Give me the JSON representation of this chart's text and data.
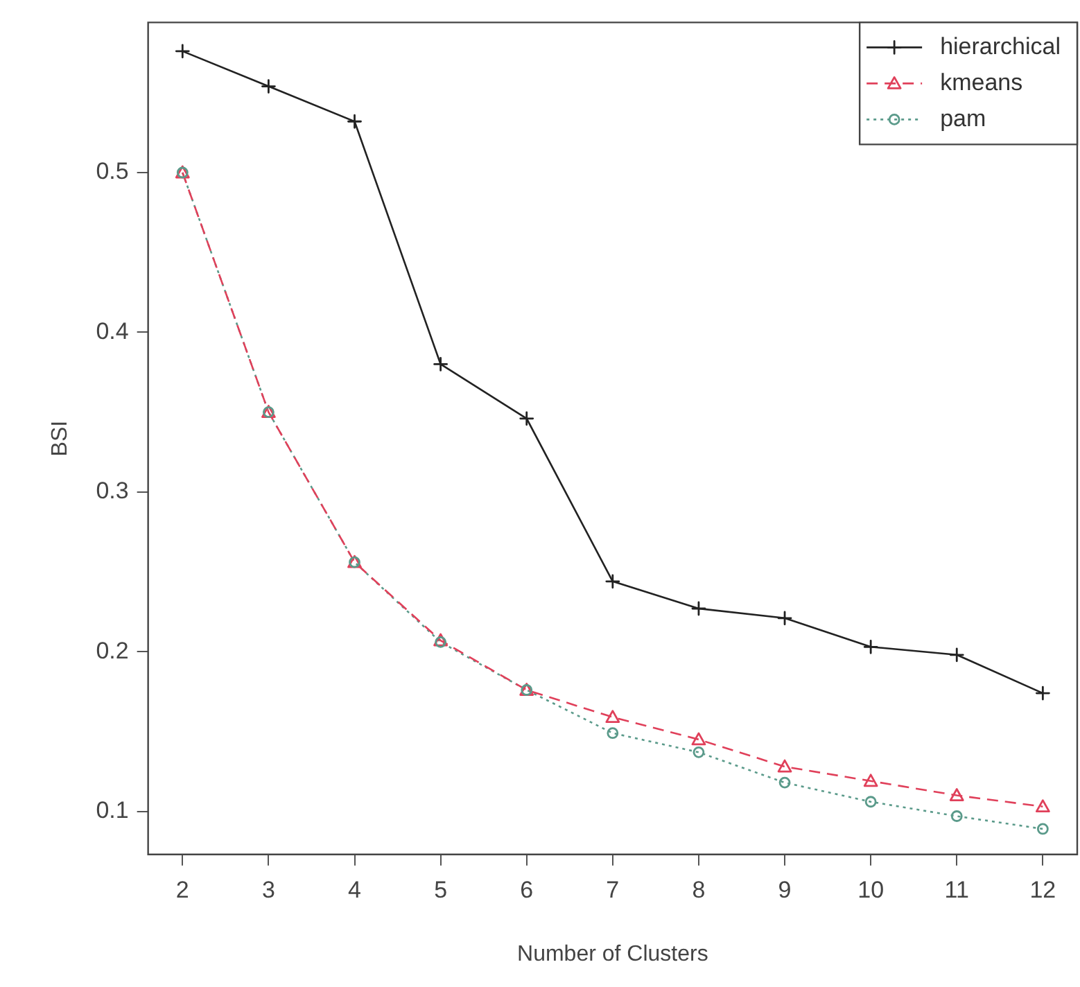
{
  "chart_data": {
    "type": "line",
    "xlabel": "Number of Clusters",
    "ylabel": "BSI",
    "x": [
      2,
      3,
      4,
      5,
      6,
      7,
      8,
      9,
      10,
      11,
      12
    ],
    "series": [
      {
        "name": "hierarchical",
        "color": "#222222",
        "line_style": "solid",
        "marker": "cross",
        "values": [
          0.576,
          0.554,
          0.532,
          0.38,
          0.346,
          0.244,
          0.227,
          0.221,
          0.203,
          0.198,
          0.174
        ]
      },
      {
        "name": "kmeans",
        "color": "#e0405a",
        "line_style": "dashed",
        "marker": "triangle",
        "values": [
          0.5,
          0.35,
          0.256,
          0.207,
          0.176,
          0.159,
          0.145,
          0.128,
          0.119,
          0.11,
          0.103
        ]
      },
      {
        "name": "pam",
        "color": "#5a9a8a",
        "line_style": "dotted",
        "marker": "circle",
        "values": [
          0.5,
          0.35,
          0.256,
          0.206,
          0.176,
          0.149,
          0.137,
          0.118,
          0.106,
          0.097,
          0.089
        ]
      }
    ],
    "xlim": [
      1.6,
      12.4
    ],
    "xticks": [
      2,
      3,
      4,
      5,
      6,
      7,
      8,
      9,
      10,
      11,
      12
    ],
    "ylim": [
      0.073,
      0.594
    ],
    "yticks": [
      0.1,
      0.2,
      0.3,
      0.4,
      0.5
    ],
    "grid": false,
    "legend": "top right"
  }
}
